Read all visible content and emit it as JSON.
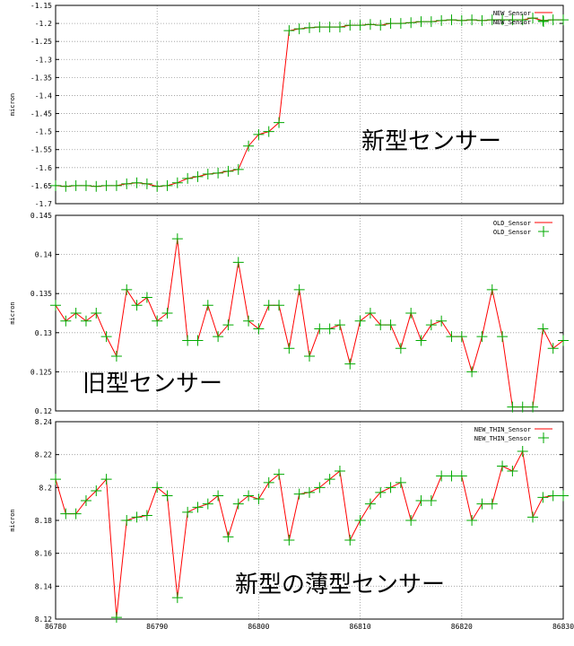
{
  "chart_data": [
    {
      "type": "line",
      "ylabel": "micron",
      "annotation": "新型センサー",
      "xlim": [
        86780,
        86830
      ],
      "ylim": [
        -1.7,
        -1.15
      ],
      "yticks": [
        -1.15,
        -1.2,
        -1.25,
        -1.3,
        -1.35,
        -1.4,
        -1.45,
        -1.5,
        -1.55,
        -1.6,
        -1.65,
        -1.7
      ],
      "ytick_labels": [
        "-1.15",
        "-1.2",
        "-1.25",
        "-1.3",
        "-1.35",
        "-1.4",
        "-1.45",
        "-1.5",
        "-1.55",
        "-1.6",
        "-1.65",
        "-1.7"
      ],
      "legend": "top-right",
      "grid": true,
      "series": [
        {
          "name": "NEW_Sensor",
          "style": "line",
          "color": "#ff0000"
        },
        {
          "name": "NEW_Sensor",
          "style": "points",
          "color": "#00aa00"
        }
      ],
      "x": [
        86780,
        86781,
        86782,
        86783,
        86784,
        86785,
        86786,
        86787,
        86788,
        86789,
        86790,
        86791,
        86792,
        86793,
        86794,
        86795,
        86796,
        86797,
        86798,
        86799,
        86800,
        86801,
        86802,
        86803,
        86804,
        86805,
        86806,
        86807,
        86808,
        86809,
        86810,
        86811,
        86812,
        86813,
        86814,
        86815,
        86816,
        86817,
        86818,
        86819,
        86820,
        86821,
        86822,
        86823,
        86824,
        86825,
        86826,
        86827,
        86828,
        86829,
        86830
      ],
      "values": [
        -1.65,
        -1.652,
        -1.65,
        -1.65,
        -1.652,
        -1.65,
        -1.65,
        -1.645,
        -1.642,
        -1.645,
        -1.652,
        -1.65,
        -1.642,
        -1.63,
        -1.625,
        -1.618,
        -1.615,
        -1.61,
        -1.605,
        -1.54,
        -1.508,
        -1.5,
        -1.475,
        -1.22,
        -1.215,
        -1.212,
        -1.21,
        -1.21,
        -1.21,
        -1.205,
        -1.205,
        -1.203,
        -1.205,
        -1.2,
        -1.2,
        -1.198,
        -1.195,
        -1.195,
        -1.192,
        -1.19,
        -1.192,
        -1.19,
        -1.192,
        -1.19,
        -1.19,
        -1.19,
        -1.19,
        -1.185,
        -1.192,
        -1.19,
        -1.19
      ]
    },
    {
      "type": "line",
      "ylabel": "micron",
      "annotation": "旧型センサー",
      "xlim": [
        86780,
        86830
      ],
      "ylim": [
        0.12,
        0.145
      ],
      "yticks": [
        0.12,
        0.125,
        0.13,
        0.135,
        0.14,
        0.145
      ],
      "ytick_labels": [
        "0.12",
        "0.125",
        "0.13",
        "0.135",
        "0.14",
        "0.145"
      ],
      "legend": "top-right",
      "grid": true,
      "series": [
        {
          "name": "OLD_Sensor",
          "style": "line",
          "color": "#ff0000"
        },
        {
          "name": "OLD_Sensor",
          "style": "points",
          "color": "#00aa00"
        }
      ],
      "x": [
        86780,
        86781,
        86782,
        86783,
        86784,
        86785,
        86786,
        86787,
        86788,
        86789,
        86790,
        86791,
        86792,
        86793,
        86794,
        86795,
        86796,
        86797,
        86798,
        86799,
        86800,
        86801,
        86802,
        86803,
        86804,
        86805,
        86806,
        86807,
        86808,
        86809,
        86810,
        86811,
        86812,
        86813,
        86814,
        86815,
        86816,
        86817,
        86818,
        86819,
        86820,
        86821,
        86822,
        86823,
        86824,
        86825,
        86826,
        86827,
        86828,
        86829,
        86830
      ],
      "values": [
        0.1335,
        0.1315,
        0.1325,
        0.1315,
        0.1325,
        0.1295,
        0.127,
        0.1355,
        0.1335,
        0.1345,
        0.1315,
        0.1325,
        0.142,
        0.129,
        0.129,
        0.1335,
        0.1295,
        0.131,
        0.139,
        0.1315,
        0.1305,
        0.1335,
        0.1335,
        0.128,
        0.1355,
        0.127,
        0.1305,
        0.1305,
        0.131,
        0.126,
        0.1315,
        0.1325,
        0.131,
        0.131,
        0.128,
        0.1325,
        0.129,
        0.131,
        0.1315,
        0.1295,
        0.1295,
        0.125,
        0.1295,
        0.1355,
        0.1295,
        0.1205,
        0.1205,
        0.1205,
        0.1305,
        0.128,
        0.129
      ]
    },
    {
      "type": "line",
      "ylabel": "micron",
      "annotation": "新型の薄型センサー",
      "xlim": [
        86780,
        86830
      ],
      "xticks": [
        86780,
        86790,
        86800,
        86810,
        86820,
        86830
      ],
      "ylim": [
        8.12,
        8.24
      ],
      "yticks": [
        8.12,
        8.14,
        8.16,
        8.18,
        8.2,
        8.22,
        8.24
      ],
      "ytick_labels": [
        "8.12",
        "8.14",
        "8.16",
        "8.18",
        "8.2",
        "8.22",
        "8.24"
      ],
      "legend": "top-right",
      "grid": true,
      "series": [
        {
          "name": "NEW_THIN_Sensor",
          "style": "line",
          "color": "#ff0000"
        },
        {
          "name": "NEW_THIN_Sensor",
          "style": "points",
          "color": "#00aa00"
        }
      ],
      "x": [
        86780,
        86781,
        86782,
        86783,
        86784,
        86785,
        86786,
        86787,
        86788,
        86789,
        86790,
        86791,
        86792,
        86793,
        86794,
        86795,
        86796,
        86797,
        86798,
        86799,
        86800,
        86801,
        86802,
        86803,
        86804,
        86805,
        86806,
        86807,
        86808,
        86809,
        86810,
        86811,
        86812,
        86813,
        86814,
        86815,
        86816,
        86817,
        86818,
        86819,
        86820,
        86821,
        86822,
        86823,
        86824,
        86825,
        86826,
        86827,
        86828,
        86829,
        86830
      ],
      "values": [
        8.205,
        8.184,
        8.184,
        8.192,
        8.198,
        8.205,
        8.121,
        8.18,
        8.182,
        8.183,
        8.2,
        8.195,
        8.133,
        8.185,
        8.188,
        8.19,
        8.195,
        8.17,
        8.19,
        8.195,
        8.193,
        8.203,
        8.208,
        8.168,
        8.196,
        8.197,
        8.2,
        8.205,
        8.21,
        8.168,
        8.18,
        8.19,
        8.197,
        8.2,
        8.203,
        8.18,
        8.192,
        8.192,
        8.207,
        8.207,
        8.207,
        8.18,
        8.19,
        8.19,
        8.213,
        8.21,
        8.222,
        8.182,
        8.194,
        8.195,
        8.195
      ]
    }
  ]
}
